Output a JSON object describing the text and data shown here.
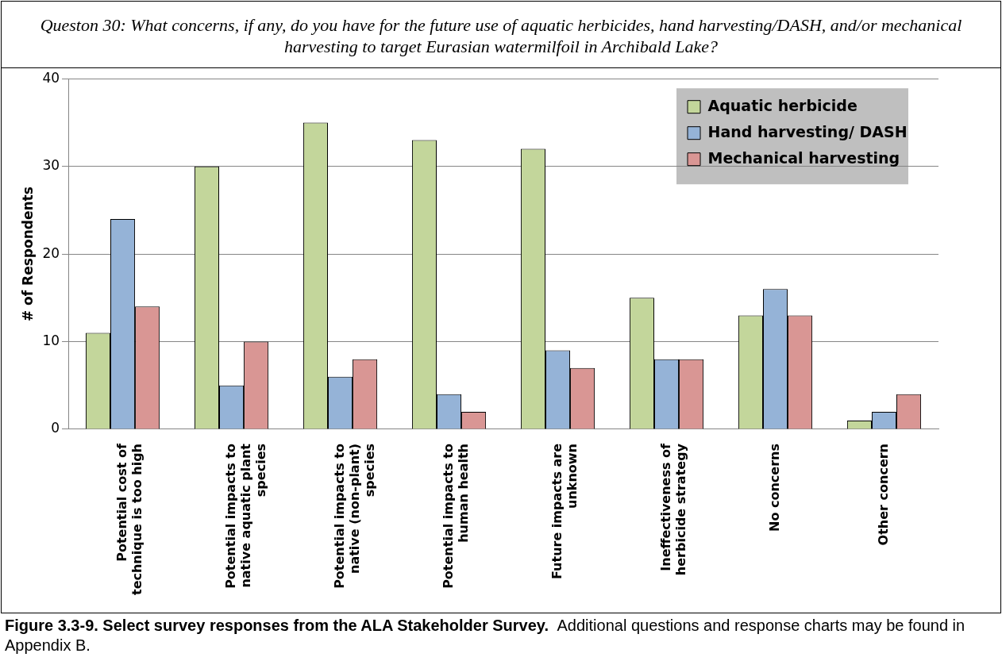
{
  "chart_data": {
    "type": "bar",
    "title": "Queston 30:  What concerns, if any, do you have for the future use of aquatic herbicides, hand harvesting/DASH, and/or mechanical harvesting to target Eurasian watermilfoil in Archibald Lake?",
    "ylabel": "# of Respondents",
    "categories": [
      "Potential cost of technique is too high",
      "Potential impacts to native aquatic plant species",
      "Potential impacts to native (non-plant) species",
      "Potential impacts to human health",
      "Future impacts are unknown",
      "Ineffectiveness of herbicide strategy",
      "No concerns",
      "Other concern"
    ],
    "series": [
      {
        "name": "Aquatic herbicide",
        "color": "#c3d69b",
        "values": [
          11,
          30,
          35,
          33,
          32,
          15,
          13,
          1
        ]
      },
      {
        "name": "Hand harvesting/ DASH",
        "color": "#95b3d7",
        "values": [
          24,
          5,
          6,
          4,
          9,
          8,
          16,
          2
        ]
      },
      {
        "name": "Mechanical harvesting",
        "color": "#d99694",
        "values": [
          14,
          10,
          8,
          2,
          7,
          8,
          13,
          4
        ]
      }
    ],
    "ylim": [
      0,
      40
    ],
    "yticks": [
      0,
      10,
      20,
      30,
      40
    ],
    "grid": "y",
    "legend": "top right",
    "annotations": [
      "Figure 3.3-9.  Select survey responses from the ALA Stakeholder Survey.",
      "Additional questions and response charts may be found in Appendix B."
    ]
  }
}
